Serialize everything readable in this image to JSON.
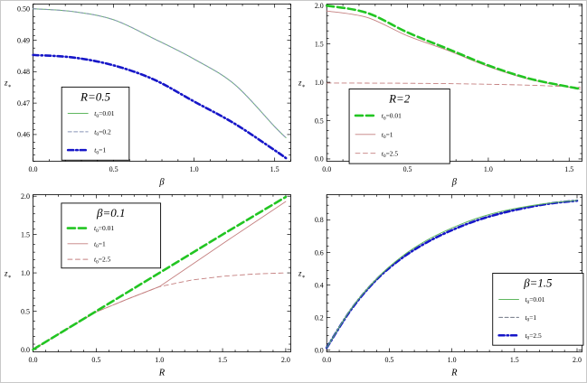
{
  "figure": {
    "background": "#ffffff",
    "frame_color": "#000000"
  },
  "chart_data": [
    {
      "id": "top-left",
      "type": "line",
      "legend_title": "R=0.5",
      "xlabel": "β",
      "ylabel": {
        "base": "z",
        "sub": "∗"
      },
      "xlim": [
        0,
        1.6
      ],
      "ylim": [
        0.4515,
        0.5015
      ],
      "grid": false,
      "xticks": {
        "values": [
          0,
          0.5,
          1.0,
          1.5
        ],
        "labels": [
          "0.0",
          "0.5",
          "1.0",
          "1.5"
        ],
        "minor": 0.1
      },
      "yticks": {
        "values": [
          0.46,
          0.47,
          0.48,
          0.49,
          0.5
        ],
        "labels": [
          "0.46",
          "0.47",
          "0.48",
          "0.49",
          "0.50"
        ],
        "minor": 0.002
      },
      "legend": {
        "pos": [
          0.111,
          0.528,
          0.262,
          0.465
        ],
        "entries": [
          {
            "pre": "t",
            "sub": "0",
            "post": "=0.01",
            "series": "t0_001"
          },
          {
            "pre": "t",
            "sub": "0",
            "post": "=0.2",
            "series": "t0_02"
          },
          {
            "pre": "t",
            "sub": "0",
            "post": "=1",
            "series": "t0_1"
          }
        ]
      },
      "series": [
        {
          "key": "t0_001",
          "name": "t0=0.01",
          "color": "#5FB75F",
          "width": 1,
          "dash": "",
          "smooth": true,
          "x": [
            0,
            0.25,
            0.5,
            0.75,
            1.0,
            1.25,
            1.5,
            1.57
          ],
          "y": [
            0.5,
            0.4991,
            0.4965,
            0.4905,
            0.484,
            0.476,
            0.4625,
            0.459
          ]
        },
        {
          "key": "t0_02",
          "name": "t0=0.2",
          "color": "#8894B8",
          "width": 1,
          "dash": "4 2.5",
          "smooth": true,
          "x": [
            0,
            0.25,
            0.5,
            0.75,
            1.0,
            1.25,
            1.5,
            1.57
          ],
          "y": [
            0.5,
            0.4991,
            0.4965,
            0.4905,
            0.484,
            0.476,
            0.4625,
            0.459
          ]
        },
        {
          "key": "t0_1",
          "name": "t0=1",
          "color": "#1616C8",
          "width": 2.6,
          "dash": "6 3 1.5 3",
          "smooth": true,
          "x": [
            0,
            0.25,
            0.5,
            0.75,
            1.0,
            1.25,
            1.5,
            1.57
          ],
          "y": [
            0.4853,
            0.4845,
            0.482,
            0.4775,
            0.4705,
            0.4635,
            0.455,
            0.4525
          ]
        }
      ]
    },
    {
      "id": "top-right",
      "type": "line",
      "legend_title": "R=2",
      "xlabel": "β",
      "ylabel": {
        "base": "z",
        "sub": "∗"
      },
      "xlim": [
        0,
        1.58
      ],
      "ylim": [
        -0.03,
        2.02
      ],
      "grid": false,
      "xticks": {
        "values": [
          0,
          0.5,
          1.0,
          1.5
        ],
        "labels": [
          "0.0",
          "0.5",
          "1.0",
          "1.5"
        ],
        "minor": 0.1
      },
      "yticks": {
        "values": [
          0,
          0.5,
          1.0,
          1.5,
          2.0
        ],
        "labels": [
          "0.0",
          "0.5",
          "1.0",
          "1.5",
          "2.0"
        ],
        "minor": 0.1
      },
      "legend": {
        "pos": [
          0.088,
          0.54,
          0.394,
          0.475
        ],
        "entries": [
          {
            "pre": "t",
            "sub": "0",
            "post": "=0.01",
            "series": "t0_001"
          },
          {
            "pre": "t",
            "sub": "0",
            "post": "=1",
            "series": "t0_1"
          },
          {
            "pre": "t",
            "sub": "0",
            "post": "=2.5",
            "series": "t0_25"
          }
        ]
      },
      "series": [
        {
          "key": "t0_1",
          "name": "t0=1",
          "color": "#C47F7F",
          "width": 0.9,
          "dash": "",
          "smooth": true,
          "x": [
            0,
            0.25,
            0.5,
            0.75,
            1.0,
            1.25,
            1.5,
            1.57
          ],
          "y": [
            1.93,
            1.845,
            1.605,
            1.415,
            1.205,
            1.04,
            0.935,
            0.912
          ]
        },
        {
          "key": "t0_25",
          "name": "t0=2.5",
          "color": "#C47F7F",
          "width": 0.9,
          "dash": "5 3.5",
          "smooth": true,
          "x": [
            0,
            0.25,
            0.5,
            0.75,
            1.0,
            1.25,
            1.5,
            1.57
          ],
          "y": [
            0.99,
            0.989,
            0.987,
            0.982,
            0.974,
            0.962,
            0.942,
            0.935
          ]
        },
        {
          "key": "t0_001",
          "name": "t0=0.01",
          "color": "#22C522",
          "width": 2.6,
          "dash": "8 4",
          "smooth": true,
          "x": [
            0,
            0.25,
            0.5,
            0.75,
            1.0,
            1.25,
            1.5,
            1.57
          ],
          "y": [
            2.0,
            1.905,
            1.65,
            1.435,
            1.22,
            1.05,
            0.94,
            0.915
          ]
        }
      ]
    },
    {
      "id": "bottom-left",
      "type": "line",
      "legend_title": "β=0.1",
      "xlabel": "R",
      "ylabel": {
        "base": "z",
        "sub": "∗"
      },
      "xlim": [
        0,
        2.04
      ],
      "ylim": [
        -0.03,
        2.02
      ],
      "grid": false,
      "xticks": {
        "values": [
          0,
          0.5,
          1.0,
          1.5,
          2.0
        ],
        "labels": [
          "0.0",
          "0.5",
          "1.0",
          "1.5",
          "2.0"
        ],
        "minor": 0.1
      },
      "yticks": {
        "values": [
          0,
          0.5,
          1.0,
          1.5,
          2.0
        ],
        "labels": [
          "0.0",
          "0.5",
          "1.0",
          "1.5",
          "2.0"
        ],
        "minor": 0.1
      },
      "legend": {
        "pos": [
          0.11,
          0.054,
          0.385,
          0.413
        ],
        "entries": [
          {
            "pre": "t",
            "sub": "0",
            "post": "=0.01",
            "series": "t0_001"
          },
          {
            "pre": "t",
            "sub": "0",
            "post": "=1",
            "series": "t0_1"
          },
          {
            "pre": "t",
            "sub": "0",
            "post": "=2.5",
            "series": "t0_25"
          }
        ]
      },
      "series": [
        {
          "key": "t0_25",
          "name": "t0=2.5",
          "color": "#C47F7F",
          "width": 0.9,
          "dash": "5 3.5",
          "smooth": false,
          "x": [
            0,
            0.25,
            0.5,
            0.75,
            1.0,
            1.25,
            1.5,
            1.75,
            2.0
          ],
          "y": [
            0,
            0.248,
            0.49,
            0.66,
            0.82,
            0.905,
            0.955,
            0.985,
            1.0
          ]
        },
        {
          "key": "t0_1",
          "name": "t0=1",
          "color": "#C47F7F",
          "width": 0.9,
          "dash": "",
          "smooth": false,
          "x": [
            0,
            0.25,
            0.5,
            0.75,
            1.0,
            1.25,
            1.5,
            1.75,
            2.0
          ],
          "y": [
            0,
            0.248,
            0.49,
            0.66,
            0.82,
            1.1,
            1.38,
            1.655,
            1.93
          ]
        },
        {
          "key": "t0_001",
          "name": "t0=0.01",
          "color": "#22C522",
          "width": 2.6,
          "dash": "8 4",
          "smooth": false,
          "x": [
            0,
            0.25,
            0.5,
            0.75,
            1.0,
            1.25,
            1.5,
            1.75,
            2.0
          ],
          "y": [
            0,
            0.25,
            0.5,
            0.75,
            1.0,
            1.25,
            1.5,
            1.745,
            1.99
          ]
        }
      ]
    },
    {
      "id": "bottom-right",
      "type": "line",
      "legend_title": "β=1.5",
      "xlabel": "R",
      "ylabel": {
        "base": "z",
        "sub": "∗"
      },
      "xlim": [
        0,
        2.04
      ],
      "ylim": [
        -0.01,
        0.955
      ],
      "grid": false,
      "xticks": {
        "values": [
          0,
          0.5,
          1.0,
          1.5,
          2.0
        ],
        "labels": [
          "0.0",
          "0.5",
          "1.0",
          "1.5",
          "2.0"
        ],
        "minor": 0.1
      },
      "yticks": {
        "values": [
          0,
          0.2,
          0.4,
          0.6,
          0.8
        ],
        "labels": [
          "0.0",
          "0.2",
          "0.4",
          "0.6",
          "0.8"
        ],
        "minor": 0.05
      },
      "legend": {
        "pos": [
          0.65,
          0.5,
          0.355,
          0.458
        ],
        "entries": [
          {
            "pre": "t",
            "sub": "0",
            "post": "=0.01",
            "series": "t0_001"
          },
          {
            "pre": "t",
            "sub": "0",
            "post": "=1",
            "series": "t0_1"
          },
          {
            "pre": "t",
            "sub": "0",
            "post": "=2.5",
            "series": "t0_25"
          }
        ]
      },
      "series": [
        {
          "key": "t0_1",
          "name": "t0=1",
          "color": "#5A6070",
          "width": 0.9,
          "dash": "4 2.5",
          "smooth": true,
          "x": [
            0,
            0.2,
            0.4,
            0.6,
            0.8,
            1.0,
            1.2,
            1.4,
            1.6,
            1.8,
            2.0
          ],
          "y": [
            0.015,
            0.255,
            0.435,
            0.565,
            0.662,
            0.737,
            0.797,
            0.842,
            0.876,
            0.902,
            0.918
          ]
        },
        {
          "key": "t0_25",
          "name": "t0=2.5",
          "color": "#1616C8",
          "width": 2.6,
          "dash": "6 3 1.5 3",
          "smooth": true,
          "x": [
            0,
            0.2,
            0.4,
            0.6,
            0.8,
            1.0,
            1.2,
            1.4,
            1.6,
            1.8,
            2.0
          ],
          "y": [
            0.015,
            0.255,
            0.435,
            0.565,
            0.662,
            0.737,
            0.797,
            0.842,
            0.876,
            0.902,
            0.918
          ]
        },
        {
          "key": "t0_001",
          "name": "t0=0.01",
          "color": "#5FB75F",
          "width": 1,
          "dash": "",
          "smooth": true,
          "x": [
            0,
            0.2,
            0.4,
            0.6,
            0.8,
            1.0,
            1.2,
            1.4,
            1.6,
            1.8,
            2.0
          ],
          "y": [
            0.015,
            0.26,
            0.44,
            0.575,
            0.675,
            0.75,
            0.81,
            0.853,
            0.883,
            0.905,
            0.92
          ]
        }
      ]
    }
  ]
}
